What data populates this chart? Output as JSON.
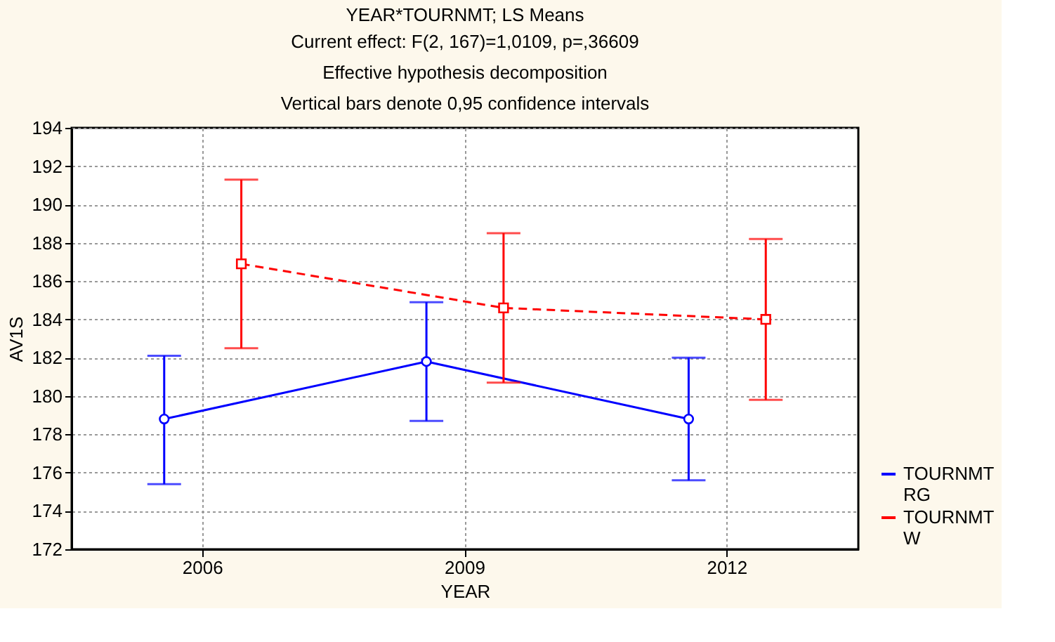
{
  "chart_data": {
    "type": "line",
    "title": "YEAR*TOURNMT; LS Means",
    "subtitle": "Current effect: F(2, 167)=1,0109, p=,36609\nEffective hypothesis decomposition\nVertical bars denote 0,95 confidence intervals",
    "xlabel": "YEAR",
    "ylabel": "AV1S",
    "categories": [
      "2006",
      "2009",
      "2012"
    ],
    "series": [
      {
        "name": "TOURNMT RG",
        "color": "#0000ff",
        "marker": "circle",
        "line_style": "solid",
        "values": [
          178.8,
          181.8,
          178.8
        ],
        "errors": [
          [
            175.4,
            182.1
          ],
          [
            178.7,
            184.9
          ],
          [
            175.6,
            182.0
          ]
        ]
      },
      {
        "name": "TOURNMT W",
        "color": "#ff0000",
        "marker": "square",
        "line_style": "dashed",
        "values": [
          186.9,
          184.6,
          184.0
        ],
        "errors": [
          [
            182.5,
            191.3
          ],
          [
            180.7,
            188.5
          ],
          [
            179.8,
            188.2
          ]
        ]
      }
    ],
    "ylim": [
      172,
      194
    ],
    "yticks": [
      172,
      174,
      176,
      178,
      180,
      182,
      184,
      186,
      188,
      190,
      192,
      194
    ],
    "grid": true,
    "legend": "bottom right"
  }
}
